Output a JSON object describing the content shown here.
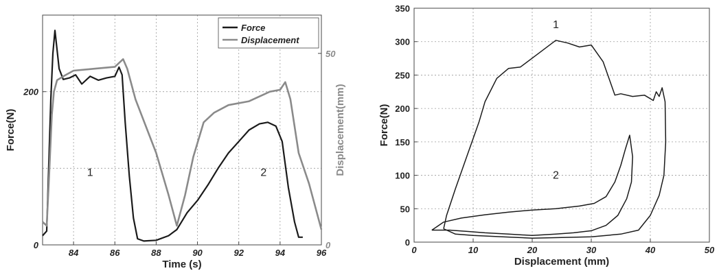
{
  "chart_data": [
    {
      "type": "line",
      "title": "",
      "xlabel": "Time (s)",
      "ylabel": "Force(N)",
      "y2label": "Displacement(mm)",
      "xlim": [
        82.5,
        96
      ],
      "ylim": [
        0,
        300
      ],
      "y2lim": [
        0,
        60
      ],
      "xticks": [
        84,
        86,
        88,
        90,
        92,
        94,
        96
      ],
      "yticks": [
        0,
        200
      ],
      "y2ticks": [
        0,
        50
      ],
      "grid": true,
      "legend_position": "top-right",
      "annotations": [
        {
          "text": "1",
          "x": 84.8,
          "y": 90
        },
        {
          "text": "2",
          "x": 93.2,
          "y": 90
        }
      ],
      "series": [
        {
          "name": "Force",
          "axis": "left",
          "color": "#1a1a1a",
          "x": [
            82.5,
            82.7,
            82.9,
            83.0,
            83.1,
            83.3,
            83.5,
            83.8,
            84.1,
            84.4,
            84.8,
            85.2,
            85.6,
            86.0,
            86.2,
            86.35,
            86.5,
            86.7,
            86.9,
            87.1,
            87.4,
            88.0,
            88.6,
            89.0,
            89.5,
            90.0,
            90.5,
            91.0,
            91.5,
            92.0,
            92.5,
            93.0,
            93.4,
            93.8,
            94.1,
            94.4,
            94.7,
            94.9,
            95.1
          ],
          "y": [
            12,
            18,
            190,
            250,
            280,
            230,
            216,
            218,
            222,
            210,
            220,
            215,
            218,
            220,
            232,
            222,
            160,
            90,
            35,
            8,
            5,
            6,
            12,
            20,
            42,
            58,
            78,
            100,
            120,
            135,
            150,
            158,
            160,
            155,
            135,
            75,
            30,
            10,
            10
          ]
        },
        {
          "name": "Displacement",
          "axis": "right",
          "color": "#8a8a8a",
          "x": [
            82.5,
            82.7,
            82.8,
            82.95,
            83.05,
            83.2,
            83.5,
            84.0,
            85.0,
            86.0,
            86.4,
            86.6,
            87.0,
            88.0,
            88.6,
            89.0,
            89.4,
            89.8,
            90.3,
            90.8,
            91.5,
            92.5,
            93.5,
            94.0,
            94.25,
            94.5,
            94.9,
            95.4,
            96.0
          ],
          "y": [
            6,
            5,
            16,
            34,
            40,
            43,
            44,
            45.5,
            46,
            46.5,
            48.5,
            46,
            38,
            24,
            13,
            5,
            13,
            23,
            32,
            34.5,
            36.5,
            37.5,
            40,
            40.5,
            42.5,
            38,
            24,
            16,
            4
          ]
        }
      ]
    },
    {
      "type": "line",
      "title": "",
      "xlabel": "Displacement (mm)",
      "ylabel": "Force(N)",
      "xlim": [
        0,
        50
      ],
      "ylim": [
        0,
        350
      ],
      "xticks": [
        0,
        10,
        20,
        30,
        40,
        50
      ],
      "yticks": [
        0,
        50,
        100,
        150,
        200,
        250,
        300,
        350
      ],
      "grid": true,
      "annotations": [
        {
          "text": "1",
          "x": 24,
          "y": 320
        },
        {
          "text": "2",
          "x": 24,
          "y": 95
        }
      ],
      "series": [
        {
          "axis": "left",
          "color": "#1a1a1a",
          "x": [
            5,
            5.5,
            7,
            9,
            11,
            12,
            14,
            16,
            18,
            21,
            24,
            26,
            28,
            30,
            32,
            33,
            34,
            35,
            37,
            39,
            40.5,
            41,
            41.5,
            42,
            42.5,
            42.6,
            42.3,
            41.5,
            40,
            38,
            35,
            30,
            25,
            20,
            15,
            10,
            7,
            5
          ],
          "x_note": null,
          "y": [
            20,
            40,
            80,
            130,
            180,
            210,
            245,
            260,
            262,
            282,
            302,
            298,
            292,
            295,
            270,
            245,
            220,
            222,
            218,
            220,
            212,
            225,
            218,
            231,
            210,
            150,
            100,
            70,
            40,
            18,
            12,
            8,
            7,
            6,
            8,
            10,
            12,
            20
          ]
        },
        {
          "axis": "left",
          "color": "#1a1a1a",
          "x": [
            3,
            5,
            8,
            12,
            16,
            20,
            24,
            28,
            30.5,
            32.5,
            34,
            35,
            35.8,
            36.5,
            37.0,
            36.8,
            36.0,
            34.5,
            32.5,
            30,
            27,
            24,
            20,
            16,
            12,
            9,
            6,
            3
          ],
          "y": [
            18,
            30,
            36,
            41,
            45,
            48,
            50,
            54,
            58,
            68,
            90,
            115,
            140,
            160,
            128,
            90,
            65,
            40,
            25,
            17,
            14,
            12,
            10,
            12,
            14,
            16,
            18,
            18
          ]
        }
      ]
    }
  ]
}
